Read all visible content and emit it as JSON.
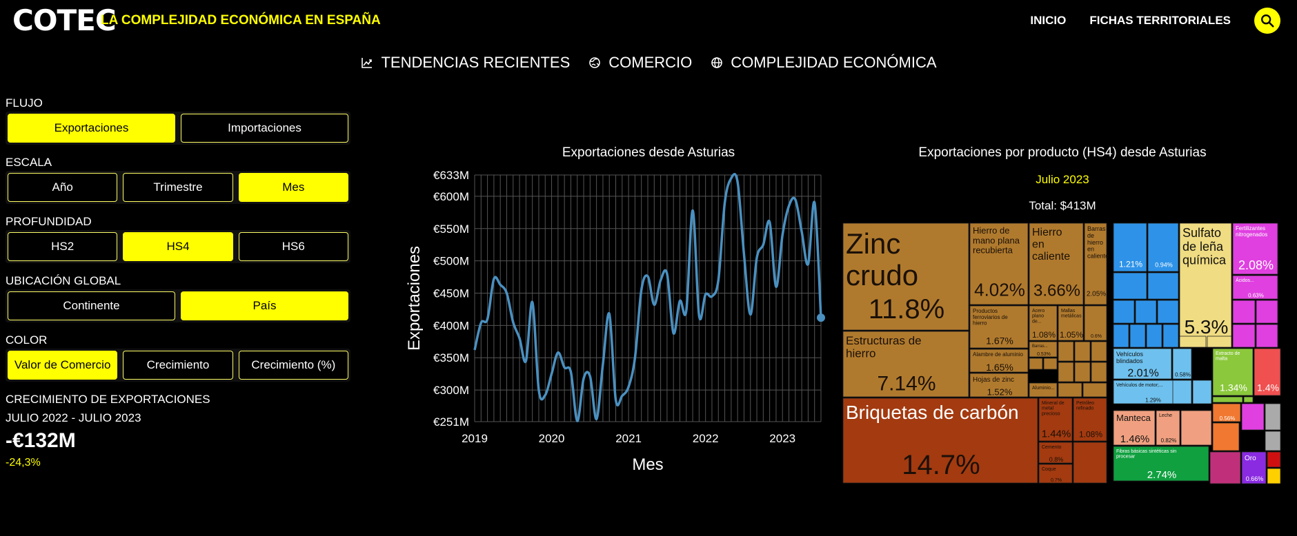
{
  "header": {
    "logo_text": "COTEC",
    "site_title": "LA COMPLEJIDAD ECONÓMICA EN ESPAÑA",
    "nav": [
      "INICIO",
      "FICHAS TERRITORIALES"
    ],
    "accent": "#ffff00"
  },
  "subnav": [
    {
      "label": "TENDENCIAS RECIENTES",
      "icon": "trend-chart-icon"
    },
    {
      "label": "COMERCIO",
      "icon": "globe-trade-icon"
    },
    {
      "label": "COMPLEJIDAD ECONÓMICA",
      "icon": "globe-icon"
    }
  ],
  "sidebar": {
    "flujo": {
      "label": "FLUJO",
      "options": [
        "Exportaciones",
        "Importaciones"
      ],
      "selected": "Exportaciones"
    },
    "escala": {
      "label": "ESCALA",
      "options": [
        "Año",
        "Trimestre",
        "Mes"
      ],
      "selected": "Mes"
    },
    "profundidad": {
      "label": "PROFUNDIDAD",
      "options": [
        "HS2",
        "HS4",
        "HS6"
      ],
      "selected": "HS4"
    },
    "ubicacion": {
      "label": "UBICACIÓN GLOBAL",
      "options": [
        "Continente",
        "País"
      ],
      "selected": "País"
    },
    "color": {
      "label": "COLOR",
      "options": [
        "Valor de Comercio",
        "Crecimiento",
        "Crecimiento (%)"
      ],
      "selected": "Valor de Comercio"
    },
    "growth": {
      "label": "CRECIMIENTO DE EXPORTACIONES",
      "period": "JULIO 2022 - JULIO 2023",
      "value": "-€132M",
      "pct": "-24,3%"
    }
  },
  "line_chart": {
    "title": "Exportaciones desde Asturias",
    "chart_data": {
      "type": "line",
      "title": "Exportaciones desde Asturias",
      "xlabel": "Mes",
      "ylabel": "Exportaciones",
      "ylim": [
        251,
        633
      ],
      "y_ticks": [
        "€251M",
        "€300M",
        "€350M",
        "€400M",
        "€450M",
        "€500M",
        "€550M",
        "€600M",
        "€633M"
      ],
      "y_tick_values": [
        251,
        300,
        350,
        400,
        450,
        500,
        550,
        600,
        633
      ],
      "x_ticks": [
        "2019",
        "2020",
        "2021",
        "2022",
        "2023"
      ],
      "x_tick_values": [
        0,
        12,
        24,
        36,
        48
      ],
      "grid": true,
      "line_color": "#4a90c0",
      "values": [
        362,
        404,
        410,
        472,
        463,
        450,
        405,
        380,
        345,
        436,
        300,
        292,
        325,
        358,
        335,
        328,
        252,
        318,
        321,
        255,
        340,
        418,
        285,
        291,
        305,
        350,
        455,
        476,
        432,
        470,
        480,
        388,
        438,
        423,
        578,
        415,
        448,
        445,
        470,
        590,
        628,
        622,
        510,
        417,
        505,
        525,
        560,
        460,
        540,
        585,
        595,
        545,
        495,
        590,
        412
      ]
    }
  },
  "treemap": {
    "title": "Exportaciones por producto (HS4) desde Asturias",
    "subtitle": "Julio 2023",
    "total": "Total: $413M",
    "items": [
      {
        "name": "Zinc crudo",
        "pct": "11.8%",
        "color": "#b07a2e"
      },
      {
        "name": "Estructuras de hierro",
        "pct": "7.14%",
        "color": "#b07a2e"
      },
      {
        "name": "Hierro de mano plana recubierta",
        "pct": "4.02%",
        "color": "#b07a2e"
      },
      {
        "name": "Hierro en caliente",
        "pct": "3.66%",
        "color": "#b07a2e"
      },
      {
        "name": "Barras de hierro en caliente",
        "pct": "2.05%",
        "color": "#b07a2e"
      },
      {
        "name": "Productos ferroviarios de hierro",
        "pct": "1.67%",
        "color": "#b07a2e"
      },
      {
        "name": "Acero plano de...",
        "pct": "1.08%",
        "color": "#b07a2e"
      },
      {
        "name": "Mallas metálicas",
        "pct": "1.05%",
        "color": "#b07a2e"
      },
      {
        "name": "",
        "pct": "0.6%",
        "color": "#b07a2e"
      },
      {
        "name": "Alambre de aluminio",
        "pct": "1.65%",
        "color": "#b07a2e"
      },
      {
        "name": "Barras...",
        "pct": "0.53%",
        "color": "#b07a2e"
      },
      {
        "name": "Hojas de zinc",
        "pct": "1.52%",
        "color": "#b07a2e"
      },
      {
        "name": "Aluminio...",
        "pct": "",
        "color": "#b07a2e"
      },
      {
        "name": "Briquetas de carbón",
        "pct": "14.7%",
        "color": "#a33a10"
      },
      {
        "name": "Mineral de metal precioso",
        "pct": "1.44%",
        "color": "#a33a10"
      },
      {
        "name": "Petróleo refinado",
        "pct": "1.08%",
        "color": "#a33a10"
      },
      {
        "name": "Cemento",
        "pct": "0.8%",
        "color": "#a33a10"
      },
      {
        "name": "Coque",
        "pct": "0.7%",
        "color": "#a33a10"
      },
      {
        "name": "",
        "pct": "1.21%",
        "color": "#2e93e8"
      },
      {
        "name": "",
        "pct": "0.94%",
        "color": "#2e93e8"
      },
      {
        "name": "Sulfato de leña química",
        "pct": "5.3%",
        "color": "#f0dc82"
      },
      {
        "name": "Fertilizantes nitrogenados",
        "pct": "2.08%",
        "color": "#e040e0"
      },
      {
        "name": "Ácidos...",
        "pct": "0.63%",
        "color": "#e040e0"
      },
      {
        "name": "Vehículos blindados",
        "pct": "2.01%",
        "color": "#6ec1ee"
      },
      {
        "name": "",
        "pct": "0.58%",
        "color": "#6ec1ee"
      },
      {
        "name": "Vehículos de motor;...",
        "pct": "1.29%",
        "color": "#6ec1ee"
      },
      {
        "name": "Extracto de malta",
        "pct": "1.34%",
        "color": "#8bc83c"
      },
      {
        "name": "",
        "pct": "1.4%",
        "color": "#f05050"
      },
      {
        "name": "Manteca",
        "pct": "1.46%",
        "color": "#f0a080"
      },
      {
        "name": "Leche",
        "pct": "0.82%",
        "color": "#f0a080"
      },
      {
        "name": "",
        "pct": "0.56%",
        "color": "#f07830"
      },
      {
        "name": "Fibras básicas sintéticas sin procesar",
        "pct": "2.74%",
        "color": "#10a040"
      },
      {
        "name": "Oro",
        "pct": "0.66%",
        "color": "#8a2be2"
      }
    ]
  }
}
